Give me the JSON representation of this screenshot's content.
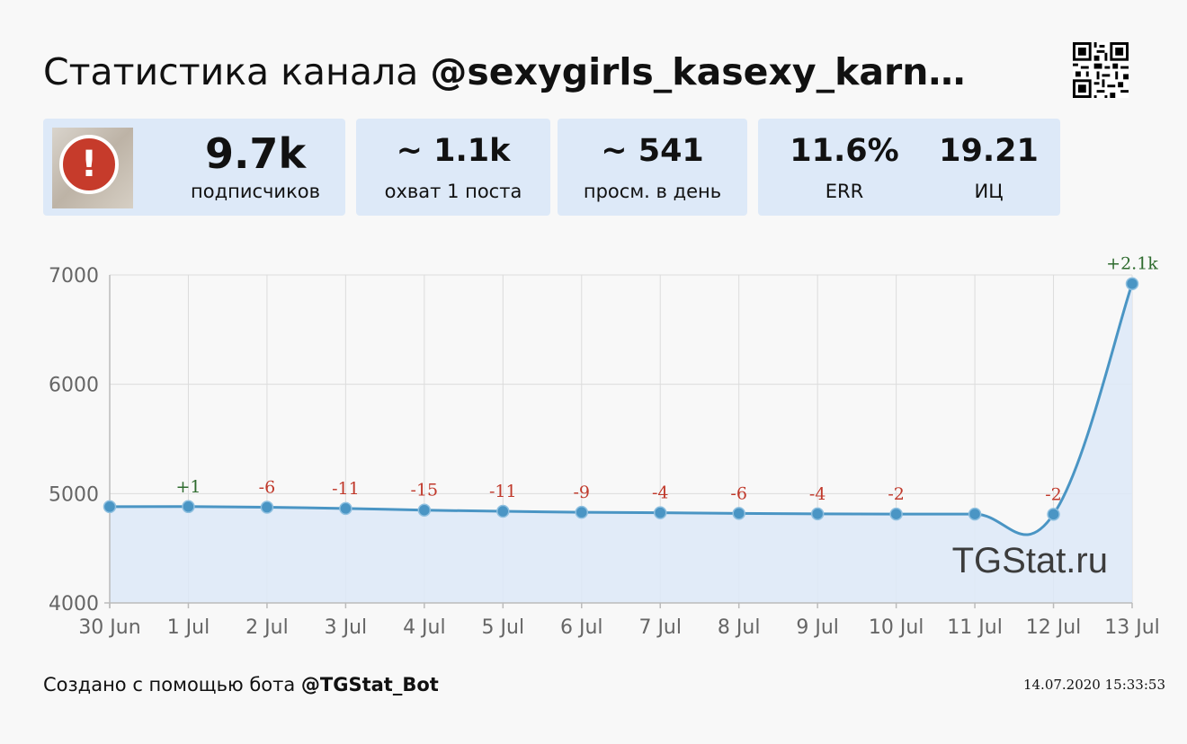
{
  "header": {
    "title_prefix": "Статистика канала ",
    "channel": "@sexygirls_kasexy_karn…"
  },
  "cards": [
    {
      "value": "9.7k",
      "label": "подписчиков"
    },
    {
      "value": "~ 1.1k",
      "label": "охват 1 поста"
    },
    {
      "value": "~ 541",
      "label": "просм. в день"
    },
    {
      "value": "11.6%",
      "label": "ERR"
    },
    {
      "value": "19.21",
      "label": "ИЦ"
    }
  ],
  "footer": {
    "text": "Создано с помощью бота ",
    "bot": "@TGStat_Bot",
    "timestamp": "14.07.2020 15:33:53"
  },
  "watermark": "TGStat.ru",
  "colors": {
    "line": "#4a95c4",
    "fill": "#dde9f8",
    "positive": "#2e6b2e",
    "negative": "#c0392b"
  },
  "chart_data": {
    "type": "line",
    "x": [
      "30 Jun",
      "1 Jul",
      "2 Jul",
      "3 Jul",
      "4 Jul",
      "5 Jul",
      "6 Jul",
      "7 Jul",
      "8 Jul",
      "9 Jul",
      "10 Jul",
      "11 Jul",
      "12 Jul",
      "13 Jul"
    ],
    "values": [
      4880,
      4881,
      4875,
      4864,
      4849,
      4838,
      4829,
      4825,
      4819,
      4815,
      4813,
      4813,
      4811,
      6920
    ],
    "deltas": [
      "",
      "+1",
      "-6",
      "-11",
      "-15",
      "-11",
      "-9",
      "-4",
      "-6",
      "-4",
      "-2",
      "",
      "-2",
      "+2.1k"
    ],
    "yticks": [
      4000,
      5000,
      6000,
      7000
    ],
    "ylim": [
      4000,
      7000
    ],
    "grid": true
  }
}
